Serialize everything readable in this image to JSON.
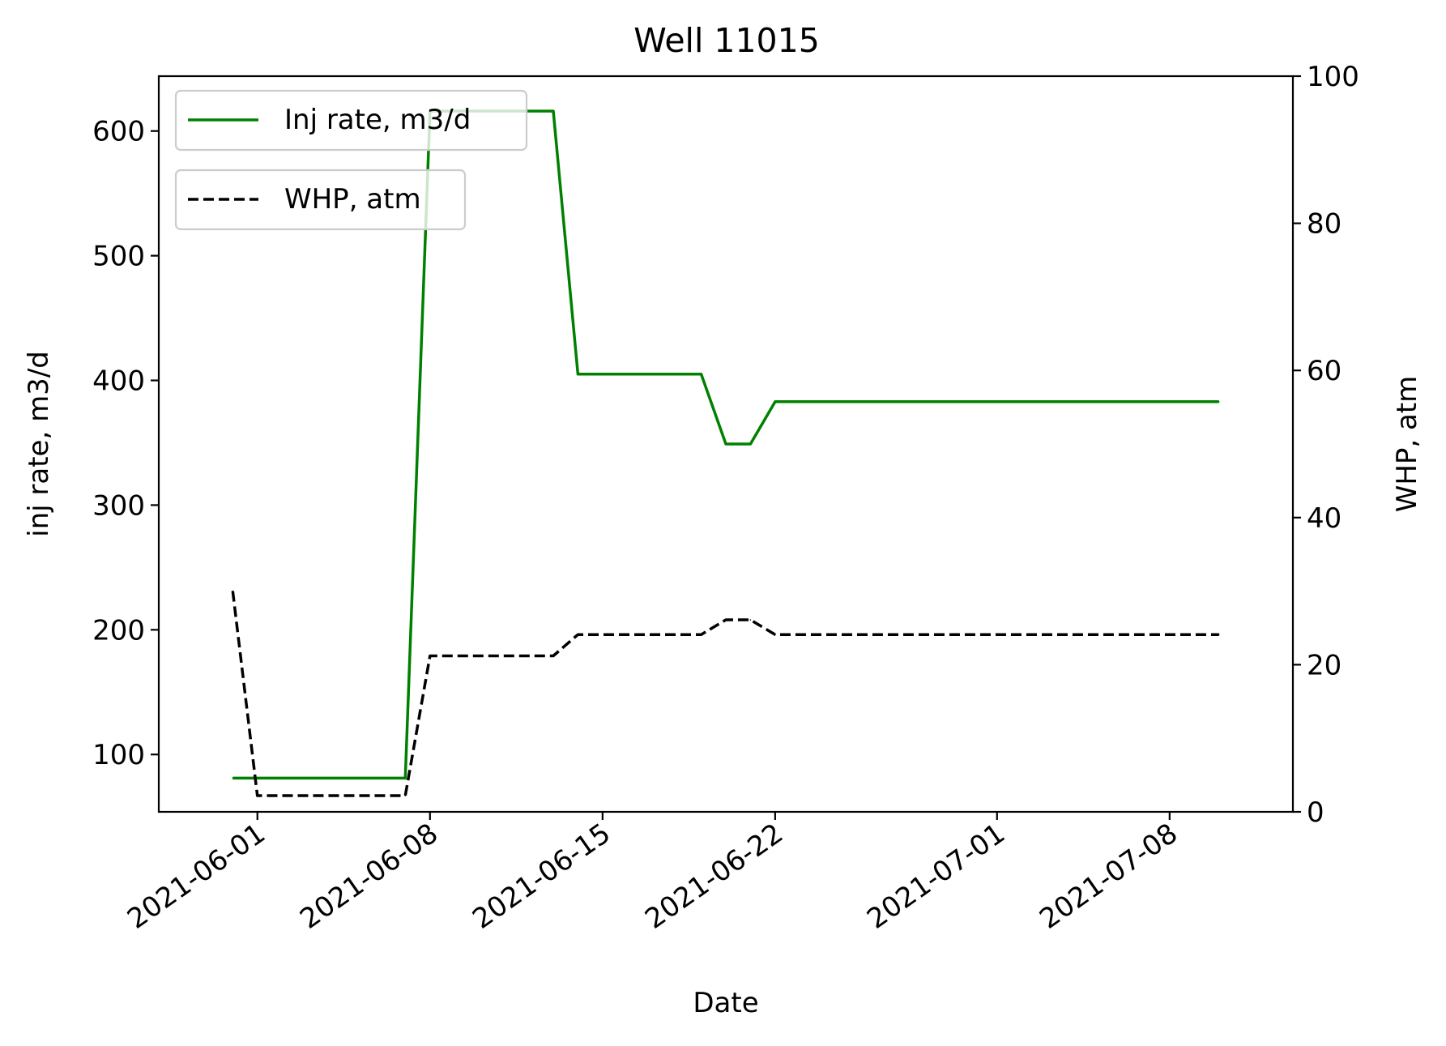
{
  "chart_data": {
    "type": "line",
    "title": "Well 11015",
    "xlabel": "Date",
    "ylabel": "inj rate, m3/d",
    "y2label": "WHP, atm",
    "grid": false,
    "legend_placement": "top-left",
    "x_ticks": [
      "2021-06-01",
      "2021-06-08",
      "2021-06-15",
      "2021-06-22",
      "2021-07-01",
      "2021-07-08"
    ],
    "y_ticks": [
      100,
      200,
      300,
      400,
      500,
      600
    ],
    "y2_ticks": [
      0,
      20,
      40,
      60,
      80,
      100
    ],
    "ylim": [
      54,
      644
    ],
    "y2lim": [
      0,
      100
    ],
    "xlim": [
      "2021-05-28",
      "2021-07-13"
    ],
    "series": [
      {
        "name": "Inj rate, m3/d",
        "axis": "left",
        "color": "#008000",
        "style": "solid",
        "x": [
          "2021-05-31",
          "2021-06-01",
          "2021-06-06",
          "2021-06-07",
          "2021-06-08",
          "2021-06-12",
          "2021-06-13",
          "2021-06-14",
          "2021-06-19",
          "2021-06-20",
          "2021-06-21",
          "2021-06-22",
          "2021-07-10"
        ],
        "values": [
          81,
          81,
          81,
          81,
          616,
          616,
          616,
          405,
          405,
          349,
          349,
          383,
          383
        ]
      },
      {
        "name": "WHP, atm",
        "axis": "right",
        "color": "#000000",
        "style": "dashed",
        "x": [
          "2021-05-31",
          "2021-06-01",
          "2021-06-06",
          "2021-06-07",
          "2021-06-08",
          "2021-06-12",
          "2021-06-13",
          "2021-06-14",
          "2021-06-19",
          "2021-06-20",
          "2021-06-21",
          "2021-06-22",
          "2021-07-10"
        ],
        "values": [
          30,
          2.2,
          2.2,
          2.2,
          21.2,
          21.2,
          21.2,
          24.1,
          24.1,
          26.1,
          26.1,
          24.1,
          24.1
        ]
      }
    ]
  }
}
